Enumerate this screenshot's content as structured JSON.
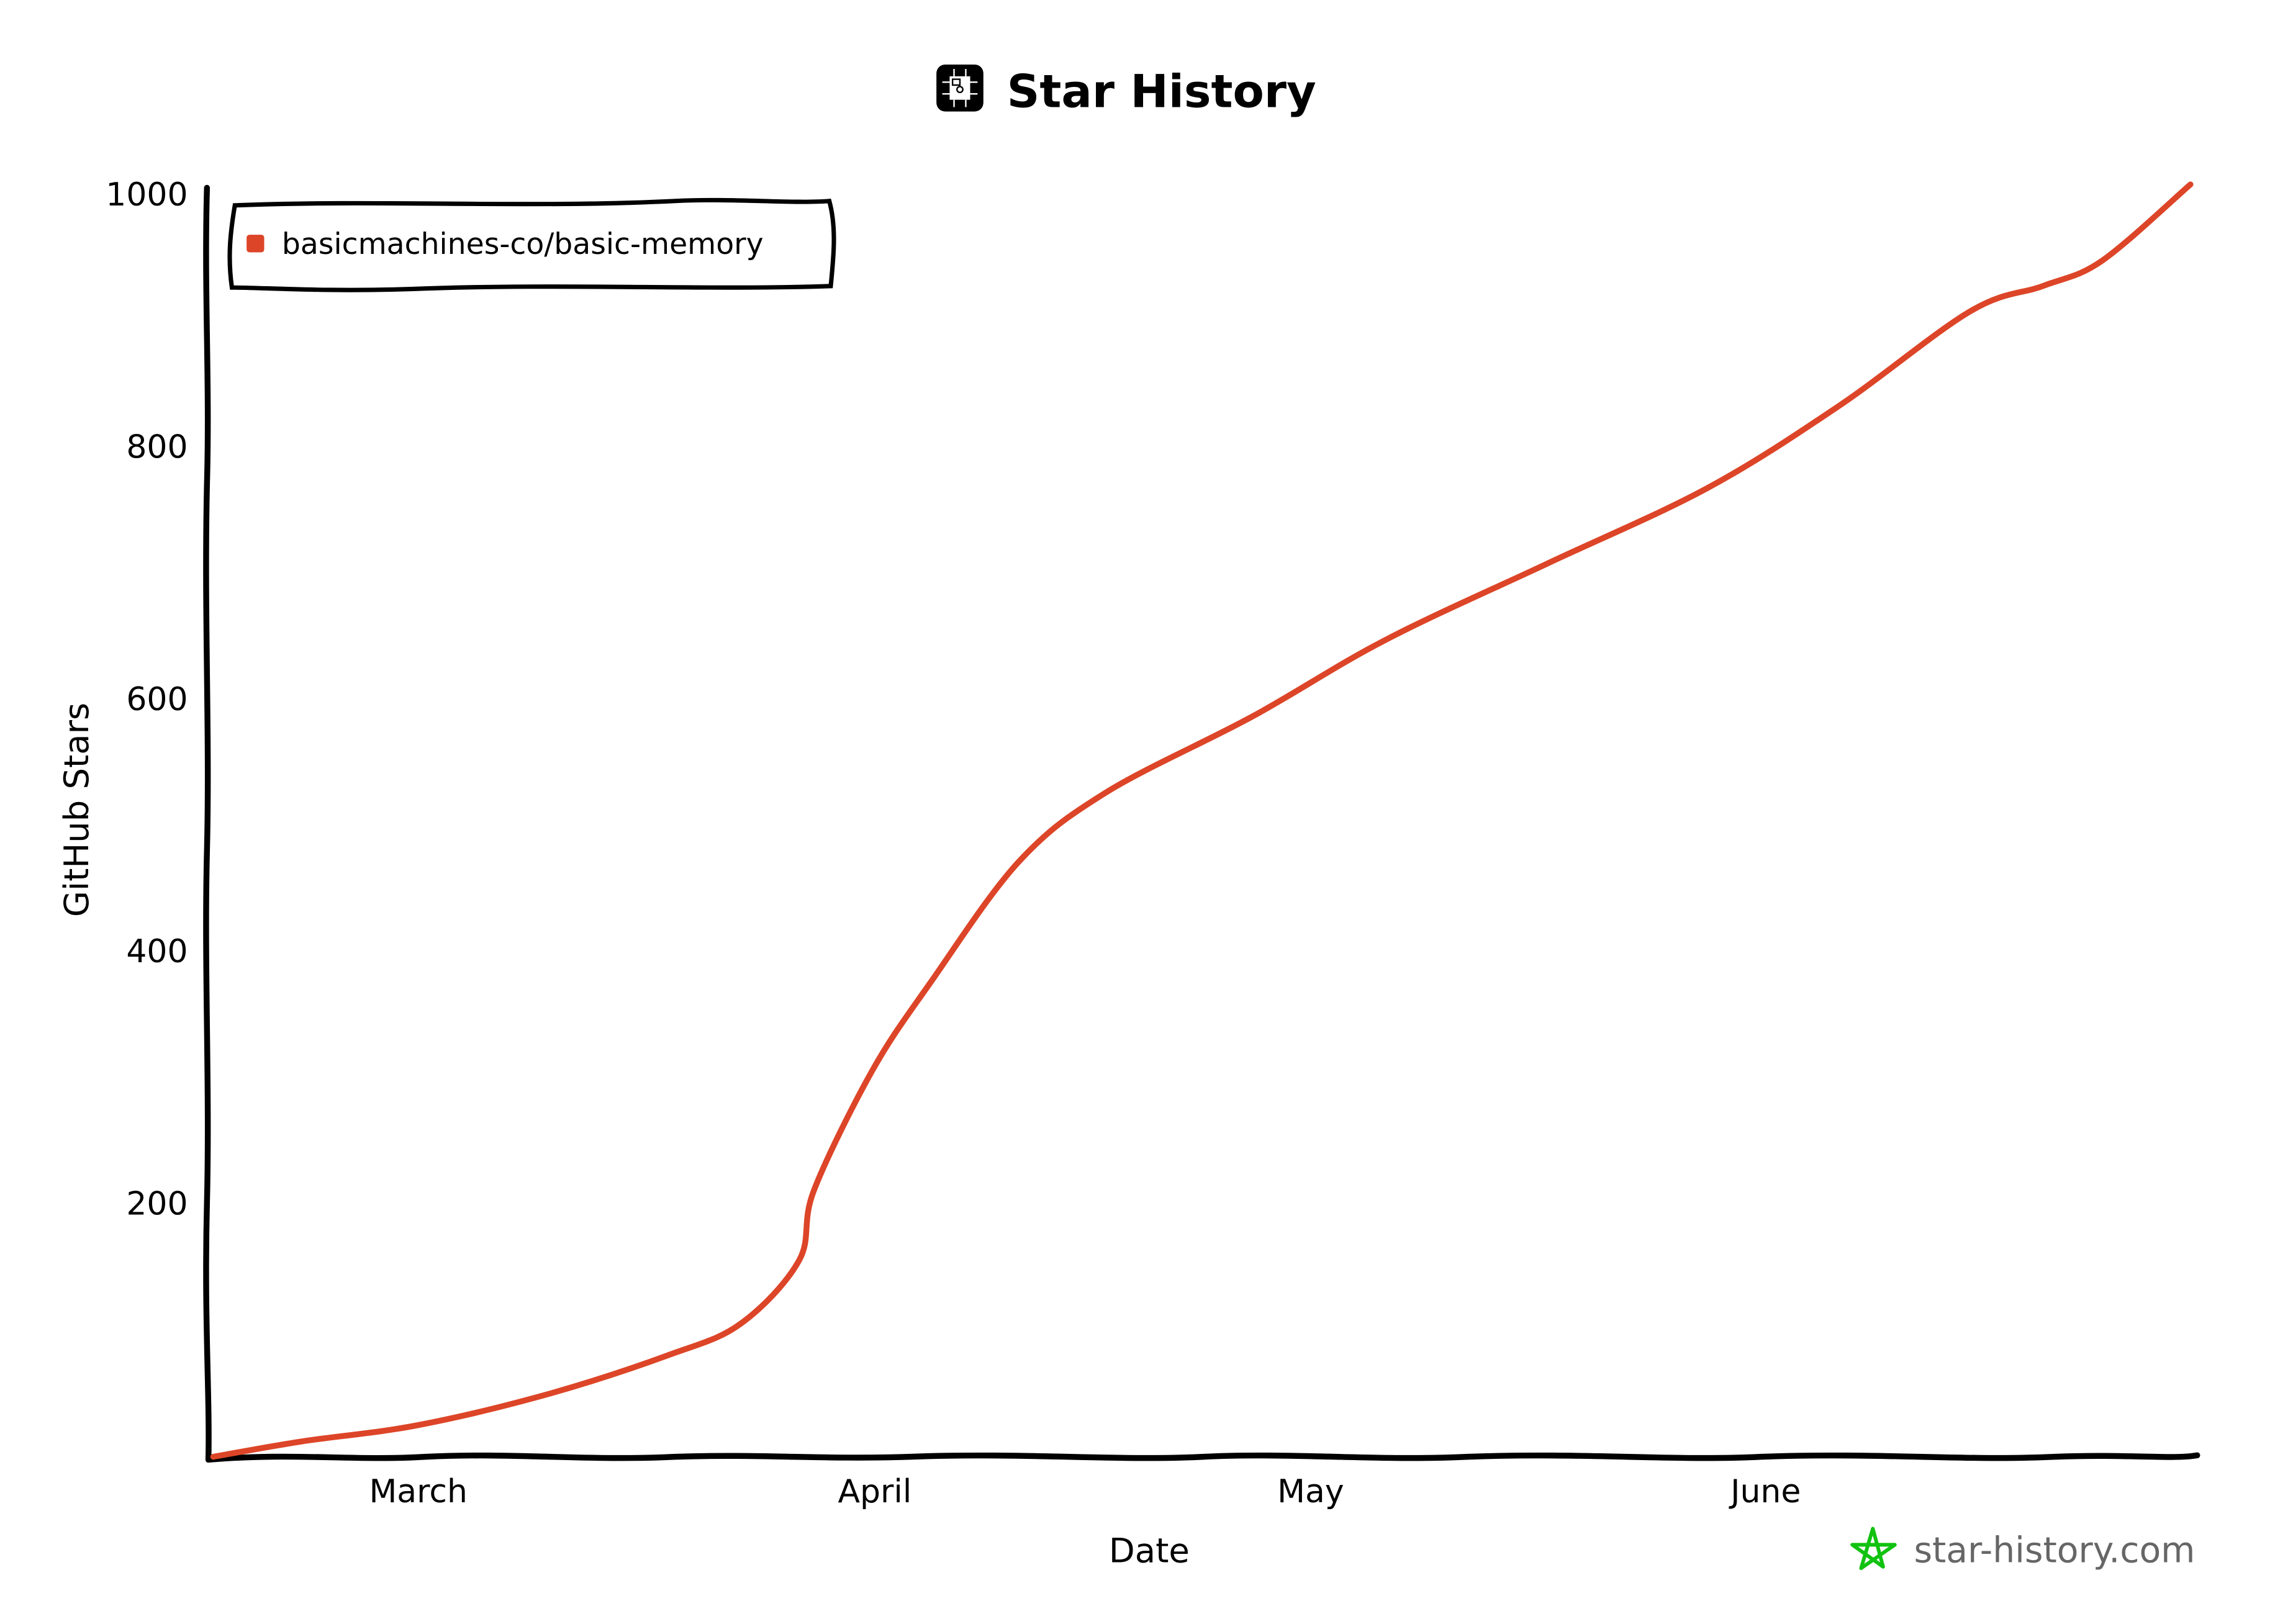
{
  "header": {
    "title": "Star History",
    "logo_icon": "circuit-floppy-logo-icon"
  },
  "legend": {
    "items": [
      {
        "label": "basicmachines-co/basic-memory",
        "color": "#DD4528"
      }
    ]
  },
  "axes": {
    "xlabel": "Date",
    "ylabel": "GitHub Stars",
    "x_ticks": [
      "March",
      "April",
      "May",
      "June"
    ],
    "y_ticks": [
      "200",
      "400",
      "600",
      "800",
      "1000"
    ]
  },
  "footer": {
    "brand_text": "star-history.com",
    "brand_icon": "star-outline-icon",
    "brand_icon_color": "#11C211"
  },
  "colors": {
    "line": "#DD4528",
    "axis": "#000000",
    "footer_text": "#666666"
  },
  "chart_data": {
    "type": "line",
    "title": "Star History",
    "xlabel": "Date",
    "ylabel": "GitHub Stars",
    "ylim": [
      0,
      1000
    ],
    "y_ticks": [
      200,
      400,
      600,
      800,
      1000
    ],
    "x_ticks": [
      "March",
      "April",
      "May",
      "June"
    ],
    "grid": false,
    "legend_position": "top-left",
    "series": [
      {
        "name": "basicmachines-co/basic-memory",
        "color": "#DD4528",
        "x": [
          "Feb 15",
          "Feb 21",
          "Mar 1",
          "Mar 10",
          "Mar 18",
          "Mar 23",
          "Mar 27",
          "Mar 28",
          "Apr 1",
          "Apr 5",
          "Apr 11",
          "Apr 17",
          "Apr 27",
          "May 6",
          "May 17",
          "May 28",
          "Jun 6",
          "Jun 15",
          "Jun 20",
          "Jun 24",
          "Jun 30"
        ],
        "values": [
          0,
          12,
          25,
          50,
          80,
          105,
          155,
          210,
          305,
          375,
          470,
          525,
          585,
          645,
          705,
          765,
          830,
          905,
          925,
          945,
          1005
        ]
      }
    ]
  }
}
